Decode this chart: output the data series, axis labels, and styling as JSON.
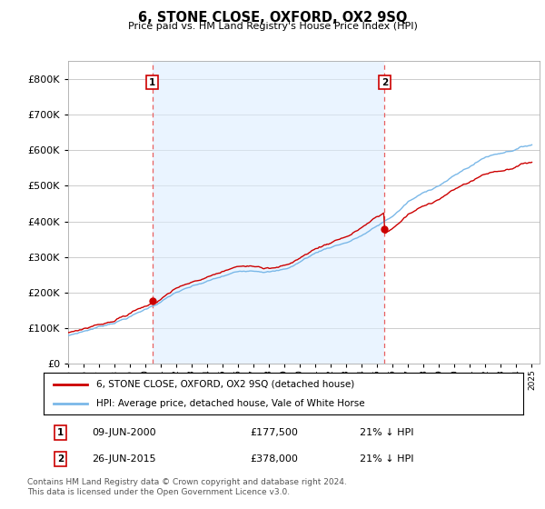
{
  "title": "6, STONE CLOSE, OXFORD, OX2 9SQ",
  "subtitle": "Price paid vs. HM Land Registry's House Price Index (HPI)",
  "ylim": [
    0,
    850000
  ],
  "yticks": [
    0,
    100000,
    200000,
    300000,
    400000,
    500000,
    600000,
    700000,
    800000
  ],
  "xlim_start": 1995.0,
  "xlim_end": 2025.5,
  "sale1_date": 2000.44,
  "sale1_price": 177500,
  "sale2_date": 2015.48,
  "sale2_price": 378000,
  "legend_entry1": "6, STONE CLOSE, OXFORD, OX2 9SQ (detached house)",
  "legend_entry2": "HPI: Average price, detached house, Vale of White Horse",
  "footer": "Contains HM Land Registry data © Crown copyright and database right 2024.\nThis data is licensed under the Open Government Licence v3.0.",
  "hpi_color": "#7ab8e8",
  "price_color": "#cc0000",
  "vline_color": "#e86060",
  "shade_color": "#ddeeff",
  "background_color": "#ffffff",
  "grid_color": "#cccccc"
}
